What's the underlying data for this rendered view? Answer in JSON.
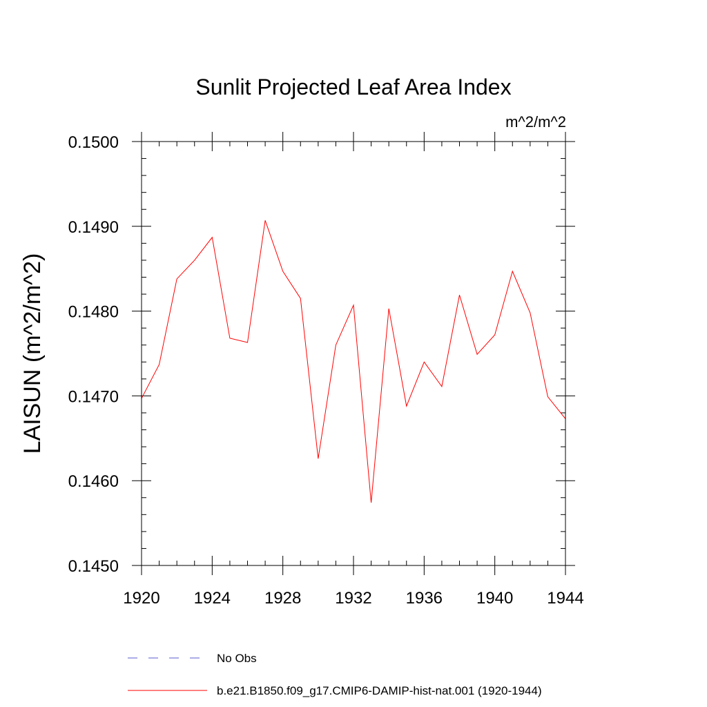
{
  "chart_data": {
    "type": "line",
    "title": "Sunlit Projected Leaf Area Index",
    "units_label": "m^2/m^2",
    "ylabel": "LAISUN  (m^2/m^2)",
    "xlabel": "",
    "xlim": [
      1920,
      1944
    ],
    "ylim": [
      0.145,
      0.15
    ],
    "x_ticks": [
      1920,
      1924,
      1928,
      1932,
      1936,
      1940,
      1944
    ],
    "x_tick_labels": [
      "1920",
      "1924",
      "1928",
      "1932",
      "1936",
      "1940",
      "1944"
    ],
    "y_ticks": [
      0.145,
      0.146,
      0.147,
      0.148,
      0.149,
      0.15
    ],
    "y_tick_labels": [
      "0.1450",
      "0.1460",
      "0.1470",
      "0.1480",
      "0.1490",
      "0.1500"
    ],
    "grid": false,
    "legend_position": "bottom",
    "x": [
      1920,
      1921,
      1922,
      1923,
      1924,
      1925,
      1926,
      1927,
      1928,
      1929,
      1930,
      1931,
      1932,
      1933,
      1934,
      1935,
      1936,
      1937,
      1938,
      1939,
      1940,
      1941,
      1942,
      1943,
      1944
    ],
    "series": [
      {
        "name": "b.e21.B1850.f09_g17.CMIP6-DAMIP-hist-nat.001 (1920-1944)",
        "color": "#ff0000",
        "style": "solid",
        "values": [
          0.14697,
          0.14737,
          0.14838,
          0.1486,
          0.14887,
          0.14768,
          0.14763,
          0.14907,
          0.14847,
          0.14815,
          0.14626,
          0.1476,
          0.14807,
          0.14574,
          0.14803,
          0.14688,
          0.1474,
          0.14711,
          0.14819,
          0.14749,
          0.14772,
          0.14847,
          0.14798,
          0.14699,
          0.14673
        ]
      }
    ],
    "legend": [
      {
        "label": "No Obs",
        "color": "#5a5acf",
        "style": "dashed"
      },
      {
        "label": "b.e21.B1850.f09_g17.CMIP6-DAMIP-hist-nat.001 (1920-1944)",
        "color": "#ff0000",
        "style": "solid"
      }
    ]
  }
}
